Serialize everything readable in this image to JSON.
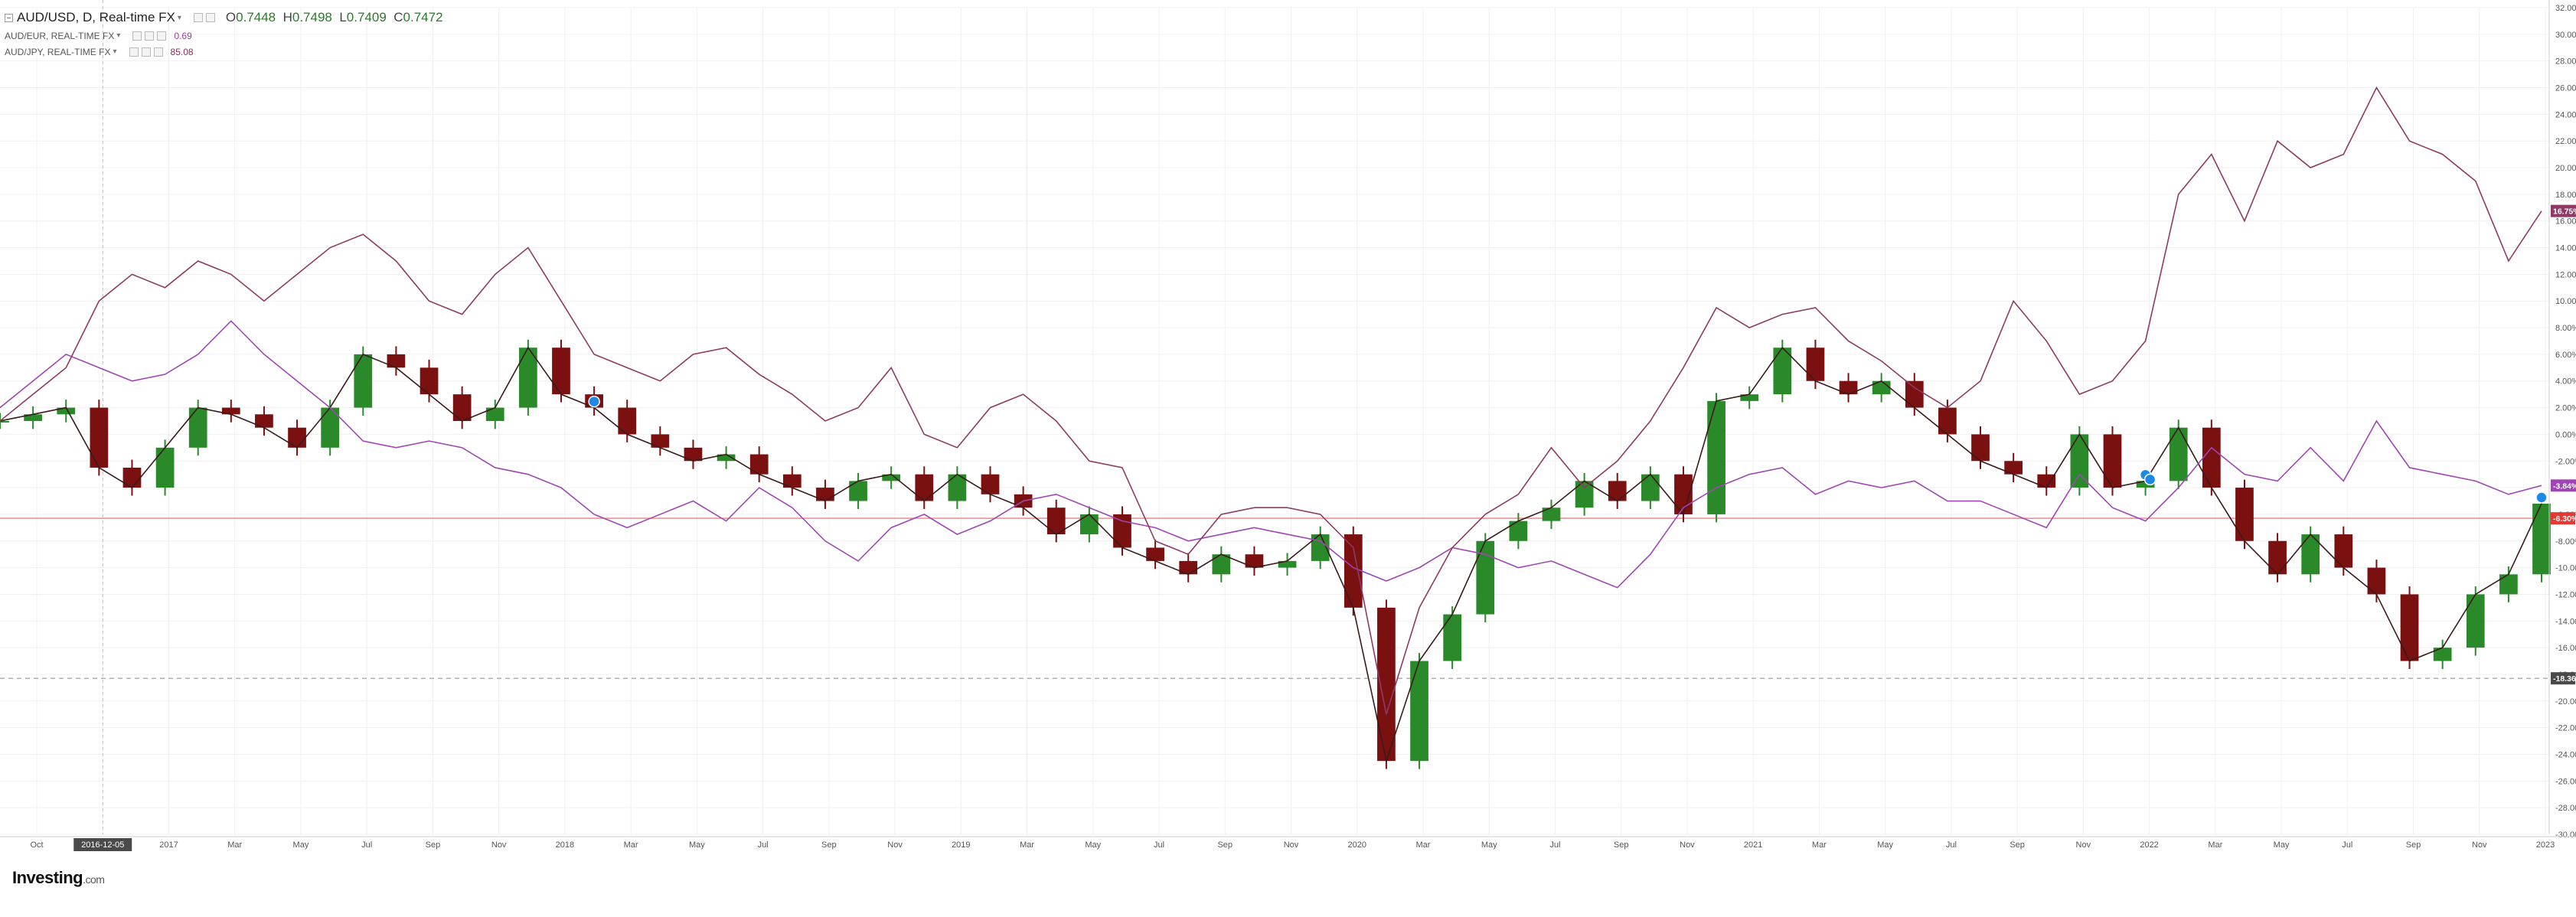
{
  "legend": {
    "main": {
      "symbol": "AUD/USD, D, Real-time FX",
      "open_label": "O",
      "open": "0.7448",
      "high_label": "H",
      "high": "0.7498",
      "low_label": "L",
      "low": "0.7409",
      "close_label": "C",
      "close": "0.7472"
    },
    "comparisons": [
      {
        "symbol": "AUD/EUR, REAL-TIME FX",
        "value": "0.69",
        "color": "#9b3f9b"
      },
      {
        "symbol": "AUD/JPY, REAL-TIME FX",
        "value": "85.08",
        "color": "#8b2c5a"
      }
    ]
  },
  "branding": {
    "logo": "Investing",
    "logo_suffix": ".com"
  },
  "colors": {
    "up": "#2a8a2a",
    "down": "#7a1010",
    "eur_line": "#a046b4",
    "jpy_line": "#8e3a64",
    "hline": "#f08a8a",
    "axis_text": "#555555",
    "grid": "#f0f0f0"
  },
  "chart_data": {
    "type": "line",
    "x_tick_labels": [
      "Oct",
      "2016-12-05",
      "2017",
      "Mar",
      "May",
      "Jul",
      "Sep",
      "Nov",
      "2018",
      "Mar",
      "May",
      "Jul",
      "Sep",
      "Nov",
      "2019",
      "Mar",
      "May",
      "Jul",
      "Sep",
      "Nov",
      "2020",
      "Mar",
      "May",
      "Jul",
      "Sep",
      "Nov",
      "2021",
      "Mar",
      "May",
      "Jul",
      "Sep",
      "Nov",
      "2022",
      "Mar",
      "May",
      "Jul",
      "Sep",
      "Nov",
      "2023"
    ],
    "highlighted_x_label": "2016-12-05",
    "y_tick_labels": [
      "32.00%",
      "30.00%",
      "28.00%",
      "26.00%",
      "24.00%",
      "22.00%",
      "20.00%",
      "18.00%",
      "16.00%",
      "14.00%",
      "12.00%",
      "10.00%",
      "8.00%",
      "6.00%",
      "4.00%",
      "2.00%",
      "0.00%",
      "-2.00%",
      "-4.00%",
      "-6.00%",
      "-8.00%",
      "-10.00%",
      "-12.00%",
      "-14.00%",
      "-16.00%",
      "-18.00%",
      "-20.00%",
      "-22.00%",
      "-24.00%",
      "-26.00%",
      "-28.00%",
      "-30.00%"
    ],
    "ylim": [
      -30,
      32
    ],
    "y_unit": "%",
    "dates": [
      "2016-09",
      "2016-10",
      "2016-11",
      "2016-12",
      "2017-01",
      "2017-02",
      "2017-03",
      "2017-04",
      "2017-05",
      "2017-06",
      "2017-07",
      "2017-08",
      "2017-09",
      "2017-10",
      "2017-11",
      "2017-12",
      "2018-01",
      "2018-02",
      "2018-03",
      "2018-04",
      "2018-05",
      "2018-06",
      "2018-07",
      "2018-08",
      "2018-09",
      "2018-10",
      "2018-11",
      "2018-12",
      "2019-01",
      "2019-02",
      "2019-03",
      "2019-04",
      "2019-05",
      "2019-06",
      "2019-07",
      "2019-08",
      "2019-09",
      "2019-10",
      "2019-11",
      "2019-12",
      "2020-01",
      "2020-02",
      "2020-03",
      "2020-04",
      "2020-05",
      "2020-06",
      "2020-07",
      "2020-08",
      "2020-09",
      "2020-10",
      "2020-11",
      "2020-12",
      "2021-01",
      "2021-02",
      "2021-03",
      "2021-04",
      "2021-05",
      "2021-06",
      "2021-07",
      "2021-08",
      "2021-09",
      "2021-10",
      "2021-11",
      "2021-12",
      "2022-01",
      "2022-02",
      "2022-03",
      "2022-04",
      "2022-05",
      "2022-06",
      "2022-07",
      "2022-08",
      "2022-09",
      "2022-10",
      "2022-11",
      "2022-12",
      "2023-01",
      "2023-02"
    ],
    "series": [
      {
        "name": "AUD/USD, D, Real-time FX",
        "values": [
          1,
          1.5,
          2,
          -2.5,
          -4,
          -1,
          2,
          1.5,
          0.5,
          -1,
          2,
          6,
          5,
          3,
          1,
          2,
          6.5,
          3,
          2,
          0,
          -1,
          -2,
          -1.5,
          -3,
          -4,
          -5,
          -3.5,
          -3,
          -5,
          -3,
          -4.5,
          -5.5,
          -7.5,
          -6,
          -8.5,
          -9.5,
          -10.5,
          -9,
          -10,
          -9.5,
          -7.5,
          -13,
          -24.5,
          -17,
          -13.5,
          -8,
          -6.5,
          -5.5,
          -3.5,
          -5,
          -3,
          -6,
          2.5,
          3,
          6.5,
          4,
          3,
          4,
          2,
          0,
          -2,
          -3,
          -4,
          0,
          -4,
          -3.5,
          0.5,
          -4,
          -8,
          -10.5,
          -7.5,
          -10,
          -12,
          -17,
          -16,
          -12,
          -10.5,
          -5.2
        ],
        "style": "candles"
      },
      {
        "name": "AUD/EUR, REAL-TIME FX",
        "values": [
          2,
          4,
          6,
          5,
          4,
          4.5,
          6,
          8.5,
          6,
          4,
          2,
          -0.5,
          -1,
          -0.5,
          -1,
          -2.5,
          -3,
          -4,
          -6,
          -7,
          -6,
          -5,
          -6.5,
          -4,
          -5.5,
          -8,
          -9.5,
          -7,
          -6,
          -7.5,
          -6.5,
          -5,
          -4.5,
          -5.5,
          -6.5,
          -7,
          -8,
          -7.5,
          -7,
          -7.5,
          -8,
          -10,
          -11,
          -10,
          -8.5,
          -9,
          -10,
          -9.5,
          -10.5,
          -11.5,
          -9,
          -5.5,
          -4,
          -3,
          -2.5,
          -4.5,
          -3.5,
          -4,
          -3.5,
          -5,
          -5,
          -6,
          -7,
          -3,
          -5.5,
          -6.5,
          -4,
          -1,
          -3,
          -3.5,
          -1,
          -3.5,
          1,
          -2.5,
          -3,
          -3.5,
          -4.5,
          -3.84
        ],
        "color": "#a046b4",
        "current_label": "-3.84%"
      },
      {
        "name": "AUD/JPY, REAL-TIME FX",
        "values": [
          1,
          3,
          5,
          10,
          12,
          11,
          13,
          12,
          10,
          12,
          14,
          15,
          13,
          10,
          9,
          12,
          14,
          10,
          6,
          5,
          4,
          6,
          6.5,
          4.5,
          3,
          1,
          2,
          5,
          0,
          -1,
          2,
          3,
          1,
          -2,
          -2.5,
          -8,
          -9,
          -6,
          -5.5,
          -5.5,
          -6,
          -8.5,
          -21,
          -13,
          -8.5,
          -6,
          -4.5,
          -1,
          -4,
          -2,
          1,
          5,
          9.5,
          8,
          9,
          9.5,
          7,
          5.5,
          3.5,
          2,
          4,
          10,
          7,
          3,
          4,
          7,
          18,
          21,
          16,
          22,
          20,
          21,
          26,
          22,
          21,
          19,
          13,
          16.75
        ],
        "color": "#8e3a64",
        "current_label": "16.75%"
      }
    ],
    "reference_lines": [
      {
        "value": -6.3,
        "label": "-6.30%",
        "color": "#f08a8a",
        "style": "solid"
      },
      {
        "value": -18.3,
        "label": "-18.3683",
        "color": "#b0b0b0",
        "style": "dashed"
      }
    ],
    "vertical_marker_x": "2016-12-05",
    "event_markers": [
      {
        "date": "2018-03"
      },
      {
        "date": "2022-02"
      },
      {
        "date": "2022-02"
      },
      {
        "date": "2023-02"
      }
    ],
    "grid": true,
    "legend_position": "top-left"
  }
}
